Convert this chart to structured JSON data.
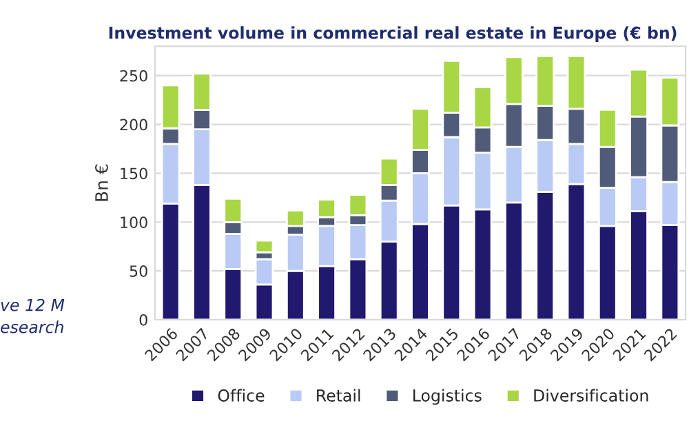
{
  "chart_data": {
    "type": "bar",
    "stacked": true,
    "title": "Investment volume in commercial real estate in Europe (€ bn)",
    "ylabel": "Bn €",
    "categories": [
      "2006",
      "2007",
      "2008",
      "2009",
      "2010",
      "2011",
      "2012",
      "2013",
      "2014",
      "2015",
      "2016",
      "2017",
      "2018",
      "2019",
      "2020",
      "2021",
      "2022"
    ],
    "series": [
      {
        "name": "Office",
        "color": "#21196e",
        "values": [
          119,
          138,
          52,
          36,
          50,
          55,
          62,
          80,
          98,
          117,
          113,
          120,
          131,
          139,
          96,
          111,
          97
        ]
      },
      {
        "name": "Retail",
        "color": "#b9caf5",
        "values": [
          61,
          57,
          36,
          26,
          37,
          41,
          35,
          42,
          52,
          70,
          58,
          57,
          53,
          41,
          39,
          35,
          44
        ]
      },
      {
        "name": "Logistics",
        "color": "#4f5b78",
        "values": [
          16,
          20,
          12,
          7,
          9,
          9,
          10,
          16,
          24,
          25,
          26,
          44,
          35,
          36,
          42,
          62,
          58
        ]
      },
      {
        "name": "Diversification",
        "color": "#a8d645",
        "values": [
          44,
          37,
          24,
          12,
          16,
          18,
          21,
          27,
          42,
          53,
          41,
          48,
          51,
          54,
          38,
          48,
          49
        ]
      }
    ],
    "ylim": [
      0,
      280
    ],
    "yticks": [
      0,
      50,
      100,
      150,
      200,
      250
    ],
    "grid": "y",
    "legend": "bottom",
    "annotations": [
      "ve 12 M",
      "esearch"
    ]
  }
}
